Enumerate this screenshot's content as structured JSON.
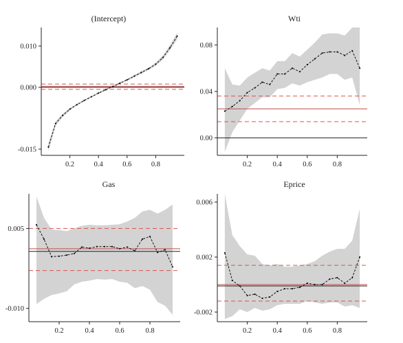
{
  "chart_data": [
    {
      "type": "line",
      "title": "(Intercept)",
      "xlim": [
        0,
        1
      ],
      "ylim": [
        -0.0165,
        0.0145
      ],
      "x_ticks": [
        {
          "v": 0.2,
          "label": "0.2"
        },
        {
          "v": 0.4,
          "label": "0.4"
        },
        {
          "v": 0.6,
          "label": "0.6"
        },
        {
          "v": 0.8,
          "label": "0.8"
        }
      ],
      "y_ticks": [
        {
          "v": 0.01,
          "label": "0.010"
        },
        {
          "v": 0.0,
          "label": "0.000"
        },
        {
          "v": -0.015,
          "label": "-0.015"
        }
      ],
      "x": [
        0.05,
        0.1,
        0.15,
        0.2,
        0.25,
        0.3,
        0.35,
        0.4,
        0.45,
        0.5,
        0.55,
        0.6,
        0.65,
        0.7,
        0.75,
        0.8,
        0.85,
        0.9,
        0.95
      ],
      "series": [
        {
          "role": "estimate",
          "values": [
            -0.0145,
            -0.0088,
            -0.0068,
            -0.0053,
            -0.0042,
            -0.0032,
            -0.0023,
            -0.0014,
            -0.0006,
            0.0002,
            0.001,
            0.0018,
            0.0027,
            0.0036,
            0.0045,
            0.0056,
            0.0072,
            0.0096,
            0.0124
          ]
        },
        {
          "role": "band_lower",
          "values": [
            -0.0155,
            -0.0093,
            -0.0072,
            -0.0056,
            -0.0044,
            -0.0034,
            -0.0025,
            -0.0016,
            -0.0008,
            0.0,
            0.0008,
            0.0016,
            0.0024,
            0.0033,
            0.0042,
            0.0052,
            0.0067,
            0.009,
            0.0116
          ]
        },
        {
          "role": "band_upper",
          "values": [
            -0.0135,
            -0.0083,
            -0.0064,
            -0.005,
            -0.004,
            -0.003,
            -0.0021,
            -0.0012,
            -0.0004,
            0.0004,
            0.0012,
            0.002,
            0.003,
            0.0039,
            0.0048,
            0.006,
            0.0077,
            0.0102,
            0.0132
          ]
        }
      ],
      "reference": {
        "ols": 0.0002,
        "ols_ci": [
          -0.0005,
          0.0008
        ],
        "zero": 0.0
      }
    },
    {
      "type": "line",
      "title": "Wti",
      "xlim": [
        0,
        1
      ],
      "ylim": [
        -0.015,
        0.095
      ],
      "x_ticks": [
        {
          "v": 0.2,
          "label": "0.2"
        },
        {
          "v": 0.4,
          "label": "0.4"
        },
        {
          "v": 0.6,
          "label": "0.6"
        },
        {
          "v": 0.8,
          "label": "0.8"
        }
      ],
      "y_ticks": [
        {
          "v": 0.08,
          "label": "0.08"
        },
        {
          "v": 0.04,
          "label": "0.04"
        },
        {
          "v": 0.0,
          "label": "0.00"
        }
      ],
      "x": [
        0.05,
        0.1,
        0.15,
        0.2,
        0.25,
        0.3,
        0.35,
        0.4,
        0.45,
        0.5,
        0.55,
        0.6,
        0.65,
        0.7,
        0.75,
        0.8,
        0.85,
        0.9,
        0.95
      ],
      "series": [
        {
          "role": "estimate",
          "values": [
            0.023,
            0.027,
            0.032,
            0.039,
            0.043,
            0.048,
            0.046,
            0.055,
            0.055,
            0.06,
            0.057,
            0.063,
            0.068,
            0.073,
            0.074,
            0.074,
            0.071,
            0.075,
            0.06
          ]
        },
        {
          "role": "band_lower",
          "values": [
            -0.012,
            0.005,
            0.015,
            0.025,
            0.03,
            0.035,
            0.035,
            0.042,
            0.043,
            0.047,
            0.045,
            0.048,
            0.05,
            0.052,
            0.055,
            0.055,
            0.05,
            0.052,
            0.028
          ]
        },
        {
          "role": "band_upper",
          "values": [
            0.06,
            0.046,
            0.045,
            0.052,
            0.056,
            0.06,
            0.058,
            0.066,
            0.066,
            0.073,
            0.07,
            0.076,
            0.082,
            0.089,
            0.09,
            0.09,
            0.088,
            0.095,
            0.095
          ]
        }
      ],
      "reference": {
        "ols": 0.025,
        "ols_ci": [
          0.014,
          0.036
        ],
        "zero": 0.0
      }
    },
    {
      "type": "line",
      "title": "Gas",
      "xlim": [
        0,
        1
      ],
      "ylim": [
        -0.0125,
        0.0115
      ],
      "x_ticks": [
        {
          "v": 0.2,
          "label": "0.2"
        },
        {
          "v": 0.4,
          "label": "0.4"
        },
        {
          "v": 0.6,
          "label": "0.6"
        },
        {
          "v": 0.8,
          "label": "0.8"
        }
      ],
      "y_ticks": [
        {
          "v": 0.005,
          "label": "0.005"
        },
        {
          "v": -0.01,
          "label": "-0.010"
        }
      ],
      "x": [
        0.05,
        0.1,
        0.15,
        0.2,
        0.25,
        0.3,
        0.35,
        0.4,
        0.45,
        0.5,
        0.55,
        0.6,
        0.65,
        0.7,
        0.75,
        0.8,
        0.85,
        0.9,
        0.95
      ],
      "series": [
        {
          "role": "estimate",
          "values": [
            0.0057,
            0.003,
            -0.0003,
            -0.0002,
            0.0,
            0.0003,
            0.0015,
            0.0013,
            0.0016,
            0.0016,
            0.0016,
            0.0012,
            0.0015,
            0.0008,
            0.003,
            0.0035,
            0.0005,
            0.001,
            -0.0022
          ]
        },
        {
          "role": "band_lower",
          "values": [
            -0.0092,
            -0.0082,
            -0.0075,
            -0.0072,
            -0.0068,
            -0.0055,
            -0.005,
            -0.0048,
            -0.0045,
            -0.0046,
            -0.0045,
            -0.005,
            -0.0052,
            -0.0062,
            -0.0058,
            -0.0065,
            -0.0088,
            -0.0095,
            -0.0112
          ]
        },
        {
          "role": "band_upper",
          "values": [
            0.011,
            0.007,
            0.0048,
            0.0047,
            0.0045,
            0.005,
            0.0055,
            0.0057,
            0.0056,
            0.0056,
            0.0057,
            0.0058,
            0.0063,
            0.007,
            0.0082,
            0.0085,
            0.0078,
            0.0085,
            0.0095
          ]
        }
      ],
      "reference": {
        "ols": 0.0012,
        "ols_ci": [
          -0.0029,
          0.005
        ],
        "zero": 0.0007
      }
    },
    {
      "type": "line",
      "title": "Eprice",
      "xlim": [
        0,
        1
      ],
      "ylim": [
        -0.0027,
        0.0066
      ],
      "x_ticks": [
        {
          "v": 0.2,
          "label": "0.2"
        },
        {
          "v": 0.4,
          "label": "0.4"
        },
        {
          "v": 0.6,
          "label": "0.6"
        },
        {
          "v": 0.8,
          "label": "0.8"
        }
      ],
      "y_ticks": [
        {
          "v": 0.006,
          "label": "0.006"
        },
        {
          "v": 0.002,
          "label": "0.002"
        },
        {
          "v": -0.002,
          "label": "-0.002"
        }
      ],
      "x": [
        0.05,
        0.1,
        0.15,
        0.2,
        0.25,
        0.3,
        0.35,
        0.4,
        0.45,
        0.5,
        0.55,
        0.6,
        0.65,
        0.7,
        0.75,
        0.8,
        0.85,
        0.9,
        0.95
      ],
      "series": [
        {
          "role": "estimate",
          "values": [
            0.0023,
            0.0003,
            -0.0001,
            -0.0008,
            -0.0007,
            -0.001,
            -0.0009,
            -0.0005,
            -0.0003,
            -0.0003,
            -0.0002,
            0.0001,
            0.0,
            0.0,
            0.0004,
            0.0005,
            0.0001,
            0.0005,
            0.002
          ]
        },
        {
          "role": "band_lower",
          "values": [
            -0.0025,
            -0.0023,
            -0.0018,
            -0.002,
            -0.0017,
            -0.0019,
            -0.0018,
            -0.0015,
            -0.0014,
            -0.0014,
            -0.0014,
            -0.0012,
            -0.0013,
            -0.0014,
            -0.0013,
            -0.0013,
            -0.0016,
            -0.0015,
            -0.0017
          ]
        },
        {
          "role": "band_upper",
          "values": [
            0.0066,
            0.0036,
            0.0028,
            0.0022,
            0.0021,
            0.0015,
            0.0014,
            0.0015,
            0.0013,
            0.0013,
            0.0014,
            0.0015,
            0.0017,
            0.0021,
            0.0024,
            0.0026,
            0.0026,
            0.0032,
            0.0055
          ]
        }
      ],
      "reference": {
        "ols": 0.0,
        "ols_ci": [
          -0.0012,
          0.0014
        ],
        "zero": -0.0001
      }
    }
  ]
}
